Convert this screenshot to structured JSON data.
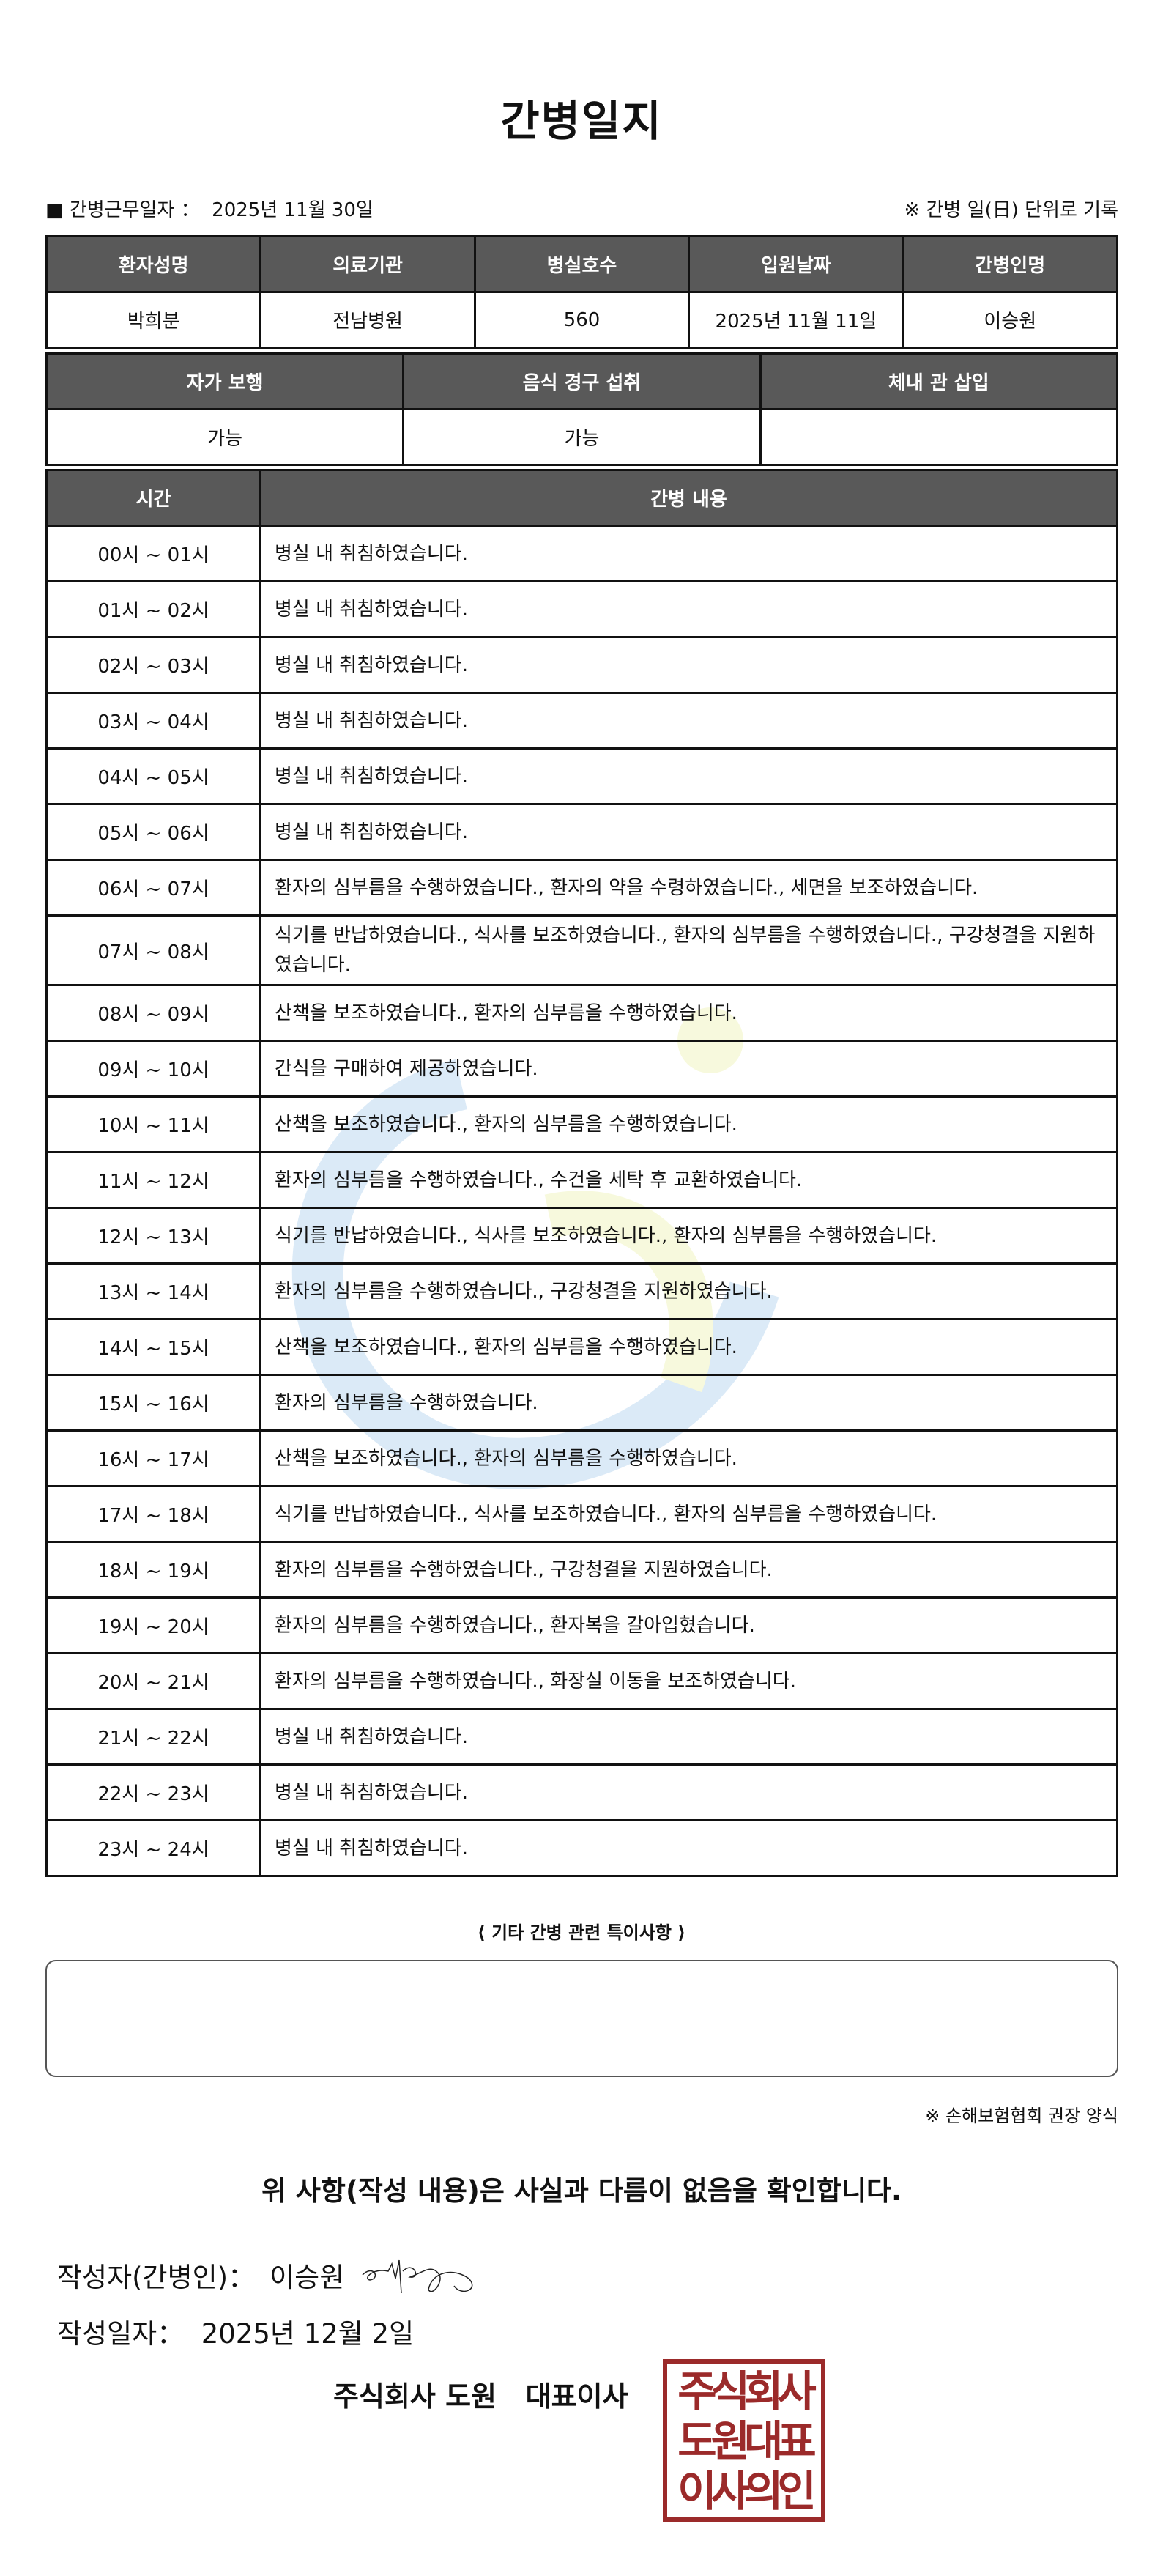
{
  "title": "간병일지",
  "info": {
    "work_date_label": "■ 간병근무일자 ：",
    "work_date": "2025년 11월 30일",
    "note": "※ 간병 일(日) 단위로 기록"
  },
  "patient_table": {
    "headers": [
      "환자성명",
      "의료기관",
      "병실호수",
      "입원날짜",
      "간병인명"
    ],
    "values": [
      "박희분",
      "전남병원",
      "560",
      "2025년 11월 11일",
      "이승원"
    ]
  },
  "status_table": {
    "headers": [
      "자가 보행",
      "음식 경구 섭취",
      "체내 관 삽입"
    ],
    "values": [
      "가능",
      "가능",
      ""
    ]
  },
  "log_table": {
    "headers": [
      "시간",
      "간병 내용"
    ],
    "rows": [
      {
        "time": "00시 ~ 01시",
        "content": "병실 내 취침하였습니다."
      },
      {
        "time": "01시 ~ 02시",
        "content": "병실 내 취침하였습니다."
      },
      {
        "time": "02시 ~ 03시",
        "content": "병실 내 취침하였습니다."
      },
      {
        "time": "03시 ~ 04시",
        "content": "병실 내 취침하였습니다."
      },
      {
        "time": "04시 ~ 05시",
        "content": "병실 내 취침하였습니다."
      },
      {
        "time": "05시 ~ 06시",
        "content": "병실 내 취침하였습니다."
      },
      {
        "time": "06시 ~ 07시",
        "content": "환자의 심부름을 수행하였습니다., 환자의 약을 수령하였습니다., 세면을 보조하였습니다."
      },
      {
        "time": "07시 ~ 08시",
        "content": "식기를 반납하였습니다., 식사를 보조하였습니다., 환자의 심부름을 수행하였습니다., 구강청결을 지원하였습니다."
      },
      {
        "time": "08시 ~ 09시",
        "content": "산책을 보조하였습니다., 환자의 심부름을 수행하였습니다."
      },
      {
        "time": "09시 ~ 10시",
        "content": "간식을 구매하여 제공하였습니다."
      },
      {
        "time": "10시 ~ 11시",
        "content": "산책을 보조하였습니다., 환자의 심부름을 수행하였습니다."
      },
      {
        "time": "11시 ~ 12시",
        "content": "환자의 심부름을 수행하였습니다., 수건을 세탁 후 교환하였습니다."
      },
      {
        "time": "12시 ~ 13시",
        "content": "식기를 반납하였습니다., 식사를 보조하였습니다., 환자의 심부름을 수행하였습니다."
      },
      {
        "time": "13시 ~ 14시",
        "content": "환자의 심부름을 수행하였습니다., 구강청결을 지원하였습니다."
      },
      {
        "time": "14시 ~ 15시",
        "content": "산책을 보조하였습니다., 환자의 심부름을 수행하였습니다."
      },
      {
        "time": "15시 ~ 16시",
        "content": "환자의 심부름을 수행하였습니다."
      },
      {
        "time": "16시 ~ 17시",
        "content": "산책을 보조하였습니다., 환자의 심부름을 수행하였습니다."
      },
      {
        "time": "17시 ~ 18시",
        "content": "식기를 반납하였습니다., 식사를 보조하였습니다., 환자의 심부름을 수행하였습니다."
      },
      {
        "time": "18시 ~ 19시",
        "content": "환자의 심부름을 수행하였습니다., 구강청결을 지원하였습니다."
      },
      {
        "time": "19시 ~ 20시",
        "content": "환자의 심부름을 수행하였습니다., 환자복을 갈아입혔습니다."
      },
      {
        "time": "20시 ~ 21시",
        "content": "환자의 심부름을 수행하였습니다., 화장실 이동을 보조하였습니다."
      },
      {
        "time": "21시 ~ 22시",
        "content": "병실 내 취침하였습니다."
      },
      {
        "time": "22시 ~ 23시",
        "content": "병실 내 취침하였습니다."
      },
      {
        "time": "23시 ~ 24시",
        "content": "병실 내 취침하였습니다."
      }
    ]
  },
  "remarks": {
    "label": "⟨ 기타 간병 관련 특이사항 ⟩",
    "value": ""
  },
  "footnote": "※ 손해보험협회 권장 양식",
  "confirmation": "위 사항(작성 내용)은 사실과 다름이 없음을 확인합니다.",
  "author": {
    "label": "작성자(간병인)：",
    "name": "이승원"
  },
  "written_date": {
    "label": "작성일자：",
    "value": "2025년 12월 2일"
  },
  "company": "주식회사 도원   대표이사",
  "seal": {
    "text": "주식회사 도원대표 이사의인",
    "color": "#9b2a2a"
  },
  "colors": {
    "header_bg": "#595959"
  }
}
